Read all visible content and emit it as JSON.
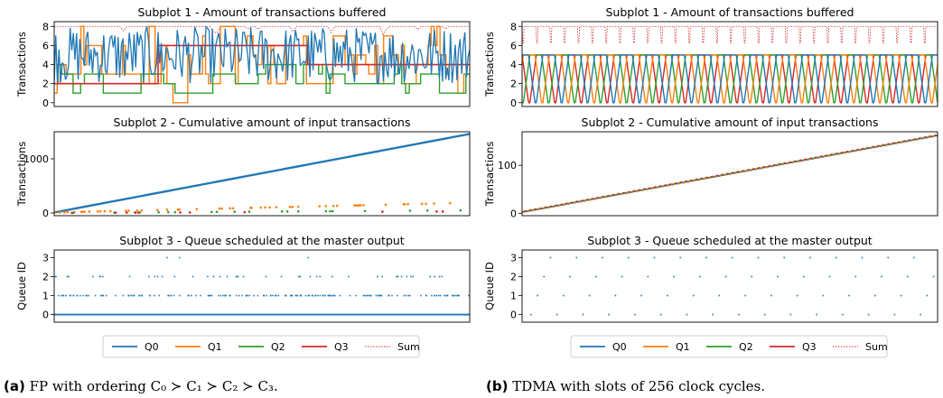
{
  "colors": {
    "Q0": "#1f77b4",
    "Q1": "#ff7f0e",
    "Q2": "#2ca02c",
    "Q3": "#d62728",
    "Sum": "#d62728"
  },
  "legend": [
    "Q0",
    "Q1",
    "Q2",
    "Q3",
    "Sum"
  ],
  "captions": {
    "a_label": "(a)",
    "a_text": "FP with ordering C₀ ≻ C₁ ≻ C₂ ≻ C₃.",
    "b_label": "(b)",
    "b_text": "TDMA with slots of 256 clock cycles."
  },
  "chart_data": [
    {
      "panel": "a",
      "subplot": 1,
      "type": "line",
      "title": "Subplot 1 - Amount of transactions buffered",
      "ylabel": "Transactions",
      "ylim": [
        -0.4,
        8.5
      ],
      "yticks": [
        0,
        2,
        4,
        6,
        8
      ],
      "series": [
        {
          "name": "Q0",
          "pattern": "erratic oscillation between 2 and 8"
        },
        {
          "name": "Q1",
          "pattern": "erratic oscillation between 0 and 8"
        },
        {
          "name": "Q2",
          "pattern": "mostly 1-4 with steps"
        },
        {
          "name": "Q3",
          "values_steps": [
            [
              0,
              2
            ],
            [
              0.22,
              2
            ],
            [
              0.25,
              6
            ],
            [
              0.6,
              6
            ],
            [
              0.61,
              4
            ],
            [
              1.0,
              4
            ]
          ]
        },
        {
          "name": "Sum",
          "pattern": "near 8"
        }
      ]
    },
    {
      "panel": "a",
      "subplot": 2,
      "type": "scatter",
      "title": "Subplot 2 - Cumulative amount of input transactions",
      "ylabel": "Transactions",
      "ylim": [
        -50,
        1500
      ],
      "yticks": [
        0,
        1000
      ],
      "series": [
        {
          "name": "Q0",
          "end_value": 1450
        },
        {
          "name": "Q1",
          "end_value": 180
        },
        {
          "name": "Q2",
          "end_value": 50
        },
        {
          "name": "Q3",
          "end_value": 30
        }
      ]
    },
    {
      "panel": "a",
      "subplot": 3,
      "type": "scatter",
      "title": "Subplot 3 - Queue scheduled at the master output",
      "ylabel": "Queue ID",
      "ylim": [
        -0.4,
        3.4
      ],
      "yticks": [
        0,
        1,
        2,
        3
      ],
      "series": [
        {
          "name": "Q0",
          "pattern": "mostly 0, frequent 1, sparse 2, rare 3"
        }
      ]
    },
    {
      "panel": "b",
      "subplot": 1,
      "type": "line",
      "title": "Subplot 1 - Amount of transactions buffered",
      "ylabel": "Transactions",
      "ylim": [
        -0.4,
        8.5
      ],
      "yticks": [
        0,
        2,
        4,
        6,
        8
      ],
      "series": [
        {
          "name": "Q0",
          "pattern": "periodic 0-5 rotation"
        },
        {
          "name": "Q1",
          "pattern": "periodic 0-5 rotation"
        },
        {
          "name": "Q2",
          "pattern": "periodic 0-5 rotation"
        },
        {
          "name": "Q3",
          "pattern": "periodic 0-5 rotation"
        },
        {
          "name": "Sum",
          "pattern": "8 with periodic dips to 6"
        }
      ]
    },
    {
      "panel": "b",
      "subplot": 2,
      "type": "scatter",
      "title": "Subplot 2 - Cumulative amount of input transactions",
      "ylabel": "Transactions",
      "ylim": [
        -5,
        170
      ],
      "yticks": [
        0,
        100
      ],
      "series": [
        {
          "name": "Q0",
          "end_value": 160
        },
        {
          "name": "Q1",
          "end_value": 160
        },
        {
          "name": "Q2",
          "end_value": 160
        },
        {
          "name": "Q3",
          "end_value": 160
        }
      ]
    },
    {
      "panel": "b",
      "subplot": 3,
      "type": "scatter",
      "title": "Subplot 3 - Queue scheduled at the master output",
      "ylabel": "Queue ID",
      "ylim": [
        -0.4,
        3.4
      ],
      "yticks": [
        0,
        1,
        2,
        3
      ],
      "series": [
        {
          "name": "Q0",
          "pattern": "round-robin 0,1,2,3"
        }
      ]
    }
  ]
}
